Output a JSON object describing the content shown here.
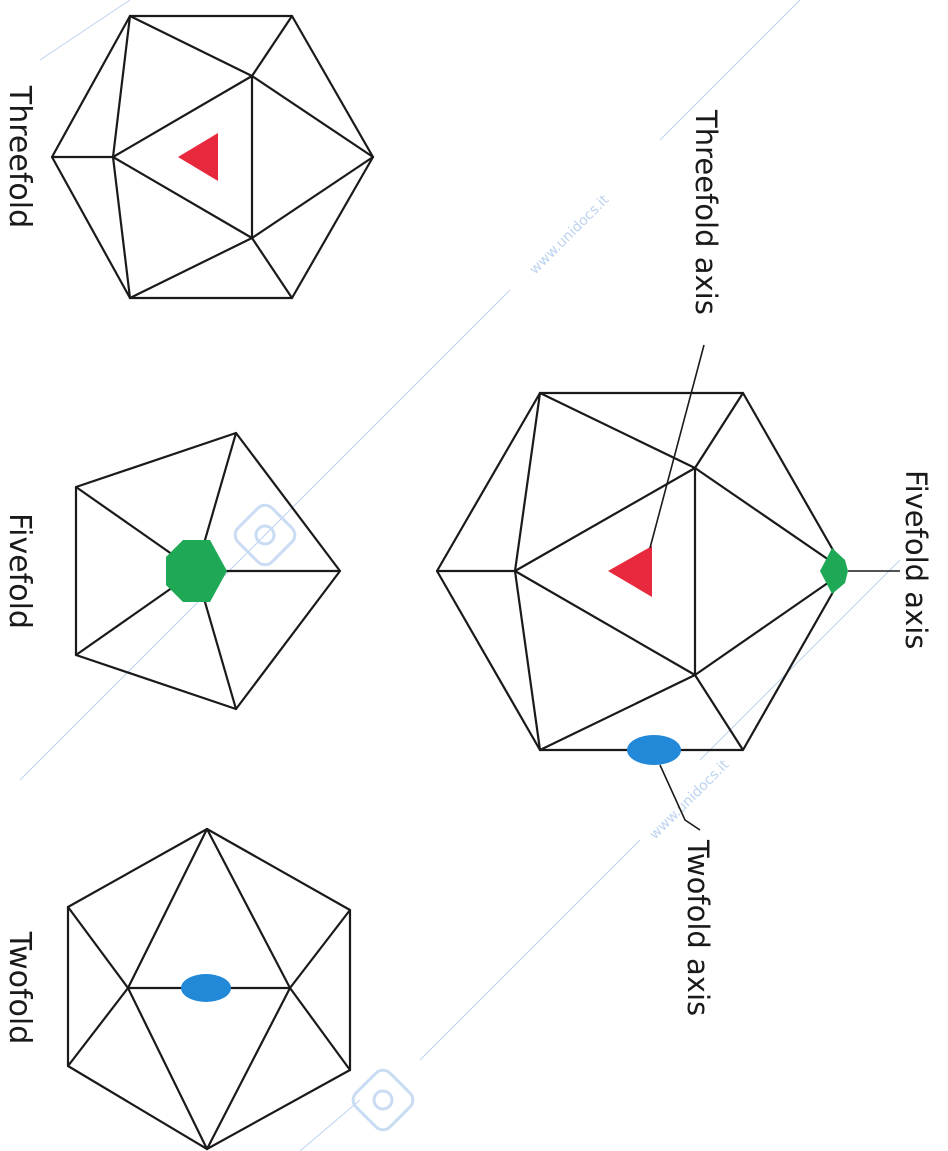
{
  "figure": {
    "labels": {
      "threefold": "Threefold",
      "fivefold": "Fivefold",
      "twofold": "Twofold",
      "threefold_axis": "Threefold axis",
      "fivefold_axis": "Fivefold axis",
      "twofold_axis": "Twofold axis"
    },
    "watermark": {
      "text_1": "www.unidocs.it",
      "text_2": "www.unidocs.it"
    },
    "colors": {
      "threefold_marker": "#e8283c",
      "fivefold_marker": "#1fa855",
      "twofold_marker": "#2288d8",
      "edge": "#1a1a1a",
      "watermark": "#bcd3f0"
    }
  }
}
